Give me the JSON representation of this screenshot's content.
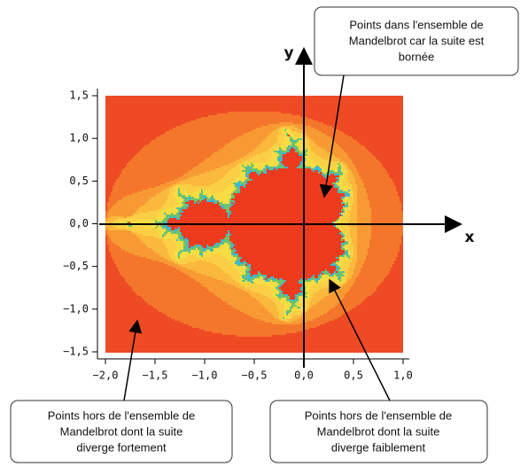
{
  "axes": {
    "x_label": "x",
    "y_label": "y",
    "x_ticks": [
      "−2,0",
      "−1,5",
      "−1,0",
      "−0,5",
      "0,0",
      "0,5",
      "1,0"
    ],
    "y_ticks": [
      "1,5",
      "1,0",
      "0,5",
      "0,0",
      "−0,5",
      "−1,0",
      "−1,5"
    ]
  },
  "callouts": [
    {
      "lines": [
        "Points dans l'ensemble de",
        "Mandelbrot car la suite est",
        "bornée"
      ]
    },
    {
      "lines": [
        "Points hors de l'ensemble de",
        "Mandelbrot dont la suite",
        "diverge fortement"
      ]
    },
    {
      "lines": [
        "Points hors de l'ensemble de",
        "Mandelbrot dont la suite",
        "diverge faiblement"
      ]
    }
  ]
}
